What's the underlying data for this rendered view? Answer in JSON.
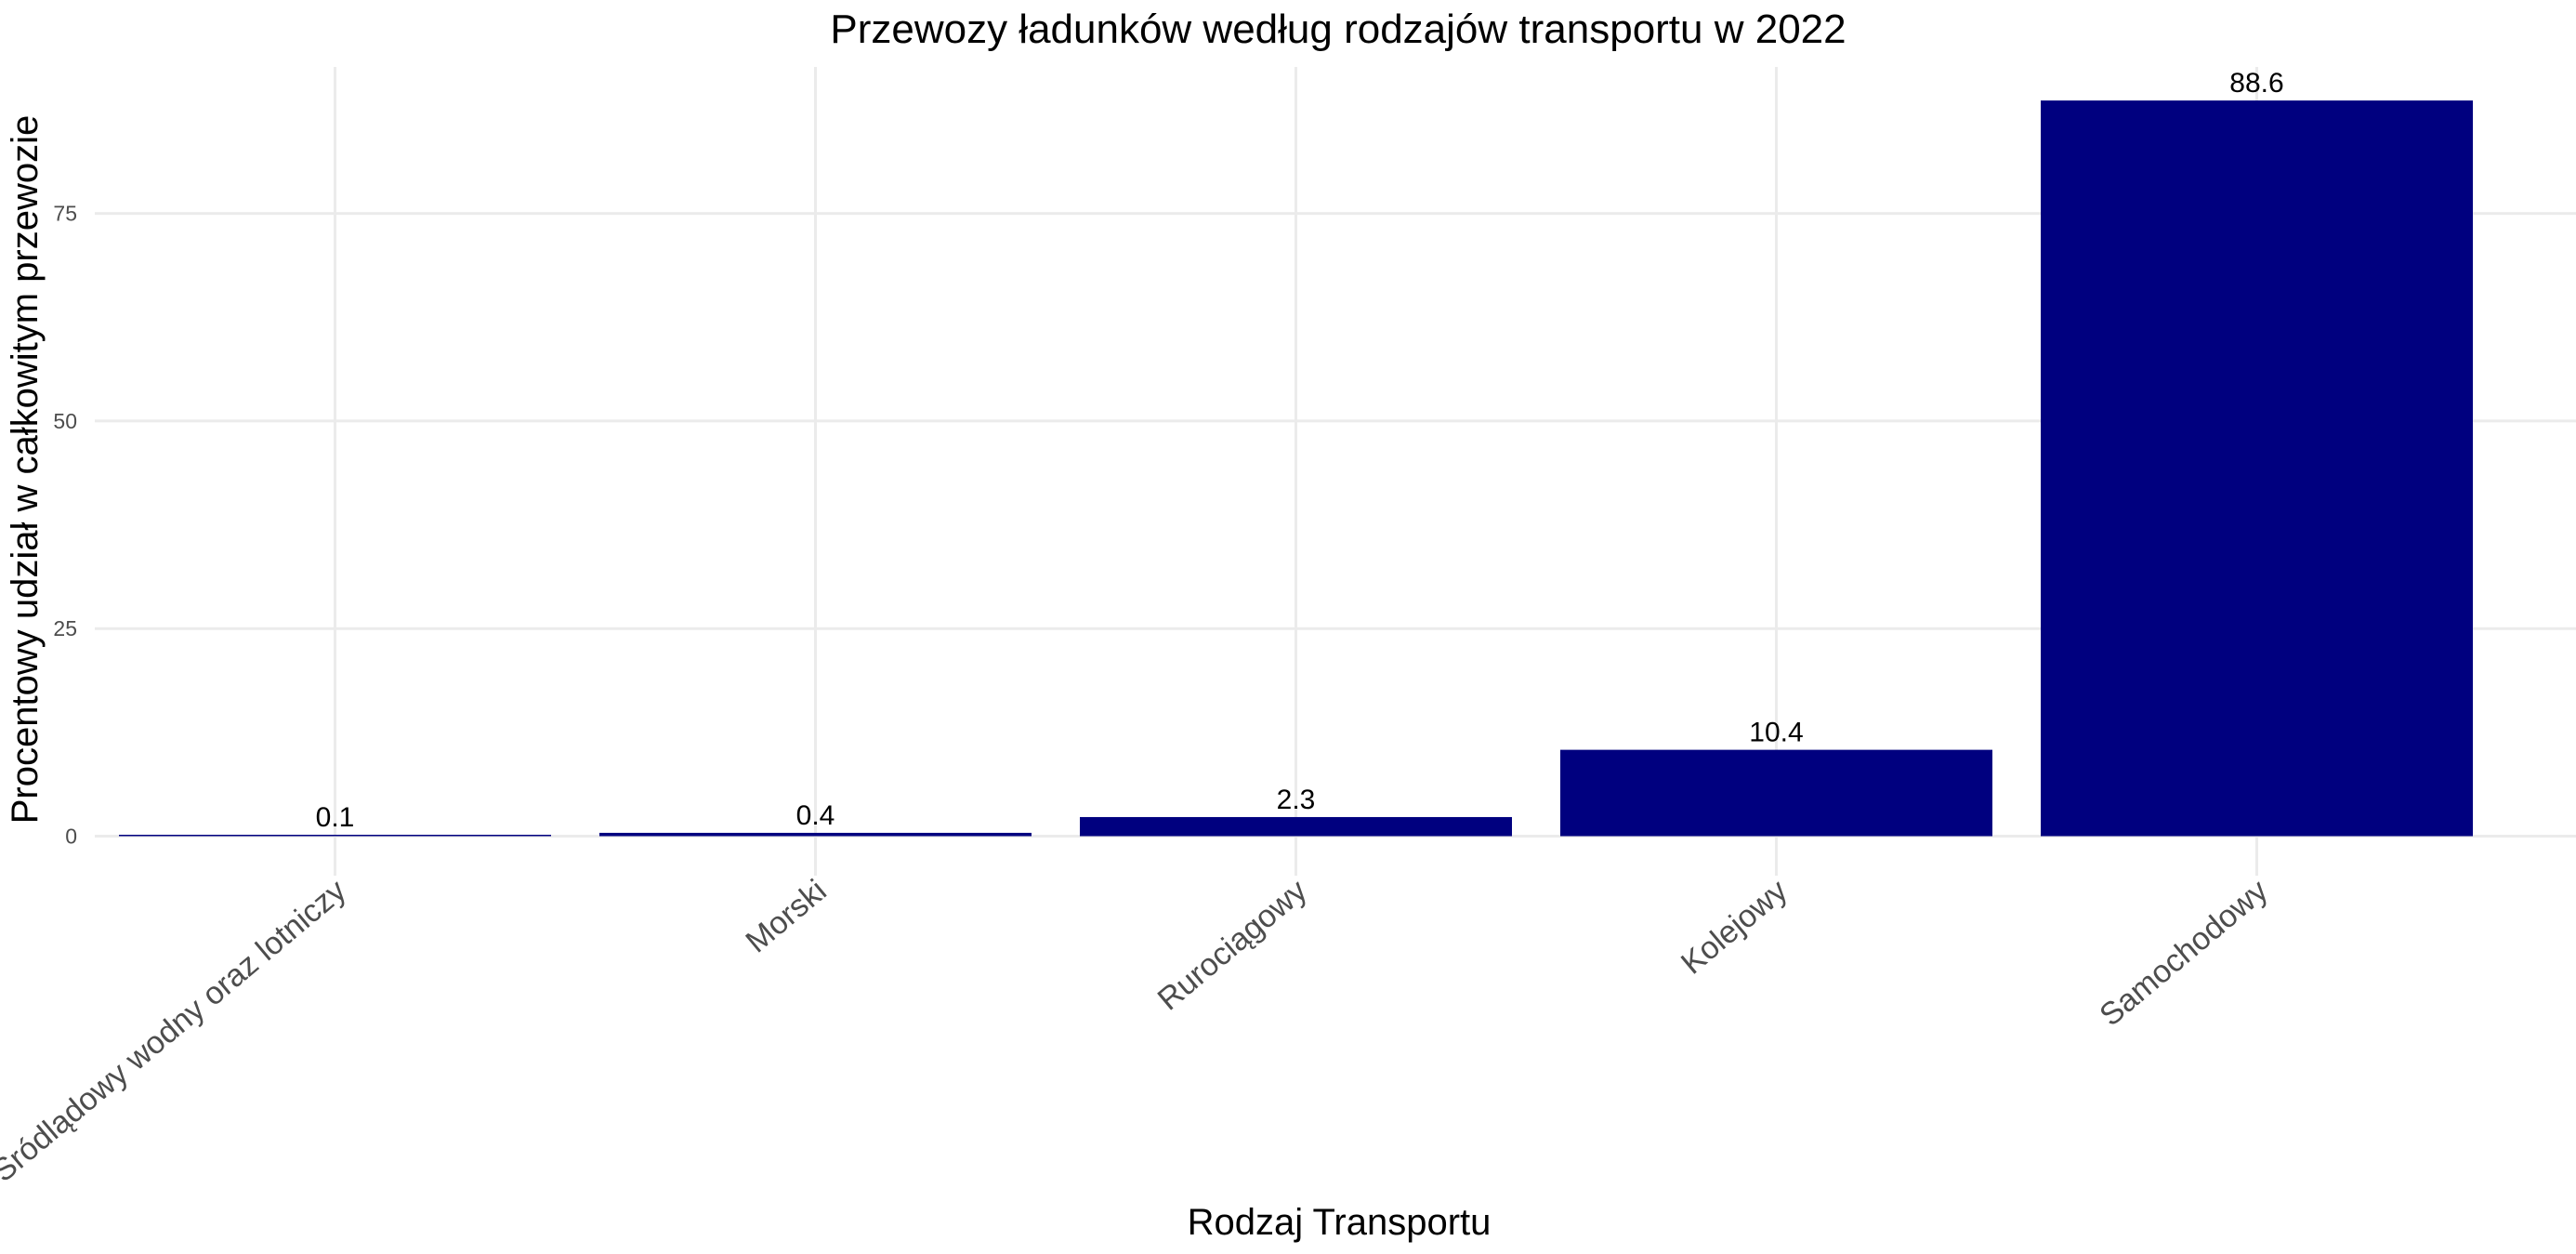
{
  "chart_data": {
    "type": "bar",
    "title": "Przewozy ładunków według rodzajów transportu w 2022",
    "xlabel": "Rodzaj Transportu",
    "ylabel": "Procentowy udział w całkowitym przewozie",
    "categories": [
      "Śródlądowy wodny oraz lotniczy",
      "Morski",
      "Rurociągowy",
      "Kolejowy",
      "Samochodowy"
    ],
    "values": [
      0.1,
      0.4,
      2.3,
      10.4,
      88.6
    ],
    "data_labels": [
      "0.1",
      "0.4",
      "2.3",
      "10.4",
      "88.6"
    ],
    "yticks": [
      0,
      25,
      50,
      75
    ],
    "ylim": [
      0,
      93
    ],
    "grid": true,
    "legend": "none",
    "bar_color": "#00007f"
  }
}
